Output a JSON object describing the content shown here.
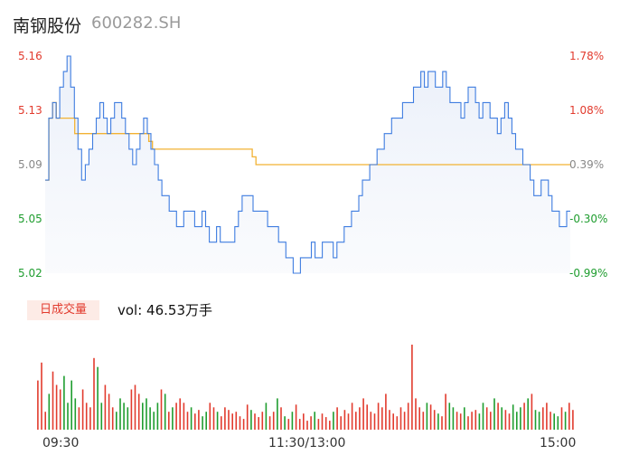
{
  "header": {
    "name": "南钢股份",
    "code": "600282.SH"
  },
  "colors": {
    "up": "#e23b2e",
    "down": "#1f9d2f",
    "price_line": "#3f7de0",
    "avg_line": "#f2b233",
    "flat": "#888888"
  },
  "chart_data": [
    {
      "type": "line",
      "title": "",
      "y_left_ticks": [
        "5.16",
        "5.13",
        "5.09",
        "5.05",
        "5.02"
      ],
      "y_right_ticks": [
        "1.78%",
        "1.08%",
        "0.39%",
        "-0.30%",
        "-0.99%"
      ],
      "ylim": [
        5.02,
        5.16
      ],
      "x_ticks": [
        "09:30",
        "11:30/13:00",
        "15:00"
      ],
      "series": [
        {
          "kind": "price",
          "values": [
            5.08,
            5.12,
            5.13,
            5.12,
            5.14,
            5.15,
            5.16,
            5.14,
            5.12,
            5.1,
            5.08,
            5.09,
            5.1,
            5.11,
            5.12,
            5.13,
            5.12,
            5.11,
            5.12,
            5.13,
            5.13,
            5.12,
            5.11,
            5.1,
            5.09,
            5.1,
            5.11,
            5.12,
            5.11,
            5.1,
            5.09,
            5.08,
            5.07,
            5.07,
            5.06,
            5.06,
            5.05,
            5.05,
            5.06,
            5.06,
            5.06,
            5.05,
            5.05,
            5.06,
            5.05,
            5.04,
            5.04,
            5.05,
            5.04,
            5.04,
            5.04,
            5.04,
            5.05,
            5.06,
            5.07,
            5.07,
            5.07,
            5.06,
            5.06,
            5.06,
            5.06,
            5.05,
            5.05,
            5.05,
            5.04,
            5.04,
            5.03,
            5.03,
            5.02,
            5.02,
            5.03,
            5.03,
            5.03,
            5.04,
            5.03,
            5.03,
            5.04,
            5.04,
            5.04,
            5.03,
            5.04,
            5.04,
            5.05,
            5.05,
            5.06,
            5.06,
            5.07,
            5.08,
            5.08,
            5.09,
            5.09,
            5.1,
            5.1,
            5.11,
            5.11,
            5.12,
            5.12,
            5.12,
            5.13,
            5.13,
            5.13,
            5.14,
            5.14,
            5.15,
            5.14,
            5.15,
            5.15,
            5.14,
            5.14,
            5.15,
            5.14,
            5.13,
            5.13,
            5.13,
            5.12,
            5.13,
            5.14,
            5.14,
            5.13,
            5.12,
            5.13,
            5.13,
            5.12,
            5.12,
            5.11,
            5.12,
            5.13,
            5.12,
            5.11,
            5.1,
            5.1,
            5.09,
            5.09,
            5.08,
            5.07,
            5.07,
            5.08,
            5.08,
            5.07,
            5.06,
            5.06,
            5.05,
            5.05,
            5.06,
            5.06
          ]
        },
        {
          "kind": "avg",
          "values": [
            5.08,
            5.12,
            5.13,
            5.12,
            5.12,
            5.12,
            5.12,
            5.12,
            5.11,
            5.11,
            5.11,
            5.11,
            5.11,
            5.11,
            5.11,
            5.11,
            5.11,
            5.11,
            5.11,
            5.11,
            5.11,
            5.11,
            5.11,
            5.11,
            5.11,
            5.11,
            5.11,
            5.11,
            5.105,
            5.1,
            5.1,
            5.1,
            5.1,
            5.1,
            5.1,
            5.1,
            5.1,
            5.1,
            5.1,
            5.1,
            5.1,
            5.1,
            5.1,
            5.1,
            5.1,
            5.1,
            5.1,
            5.1,
            5.1,
            5.1,
            5.1,
            5.1,
            5.1,
            5.1,
            5.1,
            5.1,
            5.095,
            5.09,
            5.09,
            5.09,
            5.09,
            5.09,
            5.09,
            5.09,
            5.09,
            5.09,
            5.09,
            5.09,
            5.09,
            5.09,
            5.09,
            5.09,
            5.09,
            5.09,
            5.09,
            5.09,
            5.09,
            5.09,
            5.09,
            5.09,
            5.09,
            5.09,
            5.09,
            5.09,
            5.09,
            5.09,
            5.09,
            5.09,
            5.09,
            5.09,
            5.09,
            5.09,
            5.09,
            5.09,
            5.09,
            5.09,
            5.09,
            5.09,
            5.09,
            5.09,
            5.09,
            5.09,
            5.09,
            5.09,
            5.09,
            5.09,
            5.09,
            5.09,
            5.09,
            5.09,
            5.09,
            5.09,
            5.09,
            5.09,
            5.09,
            5.09,
            5.09,
            5.09,
            5.09,
            5.09,
            5.09,
            5.09,
            5.09,
            5.09,
            5.09,
            5.09,
            5.09,
            5.09,
            5.09,
            5.09,
            5.09,
            5.09,
            5.09,
            5.09,
            5.09,
            5.09,
            5.09,
            5.09,
            5.09,
            5.09,
            5.09,
            5.09,
            5.09
          ]
        }
      ]
    },
    {
      "type": "bar",
      "title": "日成交量",
      "summary": "vol: 46.53万手",
      "values": [
        55,
        75,
        20,
        40,
        65,
        50,
        45,
        60,
        30,
        55,
        35,
        25,
        45,
        30,
        25,
        80,
        70,
        30,
        50,
        40,
        25,
        20,
        35,
        30,
        25,
        45,
        50,
        40,
        30,
        35,
        25,
        20,
        30,
        45,
        40,
        20,
        25,
        30,
        35,
        30,
        20,
        25,
        18,
        22,
        15,
        20,
        30,
        25,
        20,
        15,
        25,
        22,
        18,
        20,
        15,
        12,
        28,
        22,
        18,
        14,
        20,
        30,
        15,
        20,
        35,
        25,
        15,
        12,
        20,
        28,
        12,
        18,
        10,
        15,
        20,
        12,
        18,
        14,
        10,
        20,
        25,
        15,
        22,
        18,
        30,
        20,
        25,
        35,
        28,
        20,
        18,
        30,
        25,
        40,
        22,
        18,
        15,
        25,
        20,
        30,
        95,
        35,
        25,
        20,
        30,
        28,
        22,
        18,
        15,
        40,
        30,
        25,
        20,
        18,
        25,
        15,
        20,
        22,
        18,
        30,
        25,
        20,
        35,
        30,
        25,
        22,
        18,
        28,
        20,
        25,
        30,
        35,
        40,
        22,
        20,
        25,
        30,
        20,
        18,
        15,
        25,
        20,
        30,
        22
      ]
    }
  ]
}
